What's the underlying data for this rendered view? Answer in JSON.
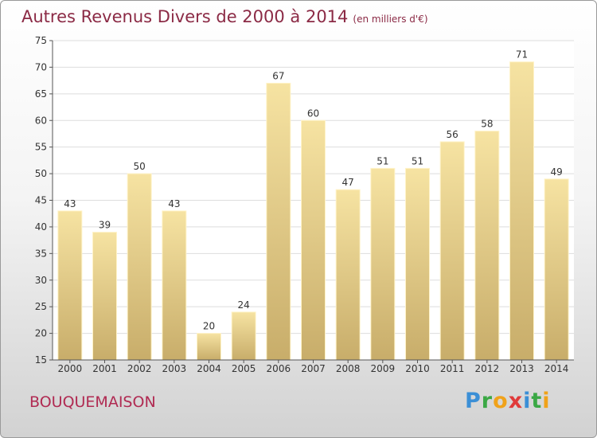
{
  "title": {
    "main": "Autres Revenus Divers de 2000 à 2014",
    "unit": "(en milliers d'€)"
  },
  "location": "BOUQUEMAISON",
  "brand": {
    "letters": [
      "P",
      "r",
      "o",
      "x",
      "i",
      "t",
      "i"
    ],
    "colors": [
      "#3b8fd6",
      "#3ba845",
      "#f0a21a",
      "#e03a3a",
      "#3b8fd6",
      "#3ba845",
      "#f0a21a"
    ]
  },
  "colors": {
    "bar_light": "#f6e3a2",
    "bar_dark": "#c8ad6a",
    "grid": "#dddddd"
  },
  "chart_data": {
    "type": "bar",
    "categories": [
      "2000",
      "2001",
      "2002",
      "2003",
      "2004",
      "2005",
      "2006",
      "2007",
      "2008",
      "2009",
      "2010",
      "2011",
      "2012",
      "2013",
      "2014"
    ],
    "values": [
      43,
      39,
      50,
      43,
      20,
      24,
      67,
      60,
      47,
      51,
      51,
      56,
      58,
      71,
      49
    ],
    "ylim": [
      15,
      75
    ],
    "yticks": [
      15,
      20,
      25,
      30,
      35,
      40,
      45,
      50,
      55,
      60,
      65,
      70,
      75
    ],
    "xlabel": "",
    "ylabel": "",
    "grid": true,
    "data_labels": true
  }
}
